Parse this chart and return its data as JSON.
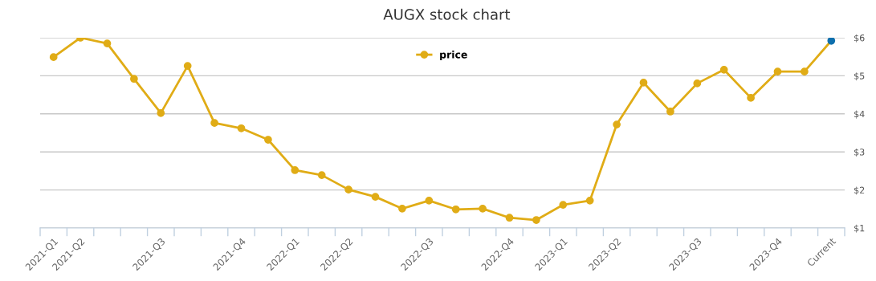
{
  "chart_data": {
    "type": "line",
    "title": "AUGX stock chart",
    "categories": [
      "2021-Q1",
      "2021-Q2",
      null,
      null,
      "2021-Q3",
      null,
      null,
      "2021-Q4",
      null,
      "2022-Q1",
      null,
      "2022-Q2",
      null,
      null,
      "2022-Q3",
      null,
      null,
      "2022-Q4",
      null,
      "2023-Q1",
      null,
      "2023-Q2",
      null,
      null,
      "2023-Q3",
      null,
      null,
      "2023-Q4",
      null,
      "Current"
    ],
    "series": [
      {
        "name": "price",
        "color": "#e0ac16",
        "colors": [
          "#e0ac16",
          "#e0ac16",
          "#e0ac16",
          "#e0ac16",
          "#e0ac16",
          "#e0ac16",
          "#e0ac16",
          "#e0ac16",
          "#e0ac16",
          "#e0ac16",
          "#e0ac16",
          "#e0ac16",
          "#e0ac16",
          "#e0ac16",
          "#e0ac16",
          "#e0ac16",
          "#e0ac16",
          "#e0ac16",
          "#e0ac16",
          "#e0ac16",
          "#e0ac16",
          "#e0ac16",
          "#e0ac16",
          "#e0ac16",
          "#e0ac16",
          "#e0ac16",
          "#e0ac16",
          "#e0ac16",
          "#e0ac16",
          "#0e6fad"
        ],
        "values": [
          5.49,
          6.0,
          5.85,
          4.92,
          4.02,
          5.26,
          3.76,
          3.62,
          3.32,
          2.52,
          2.39,
          2.01,
          1.82,
          1.51,
          1.72,
          1.49,
          1.51,
          1.27,
          1.21,
          1.61,
          1.72,
          3.72,
          4.82,
          4.06,
          4.8,
          5.16,
          4.42,
          5.11,
          5.11,
          5.92
        ]
      }
    ],
    "ylim": [
      1,
      6
    ],
    "yticks": [
      {
        "value": 1,
        "label": "$1"
      },
      {
        "value": 2,
        "label": "$2"
      },
      {
        "value": 3,
        "label": "$3"
      },
      {
        "value": 4,
        "label": "$4"
      },
      {
        "value": 5,
        "label": "$5"
      },
      {
        "value": 6,
        "label": "$6"
      }
    ],
    "grid": "y",
    "legend": "top",
    "marker": "circle",
    "line_style": "solid"
  }
}
